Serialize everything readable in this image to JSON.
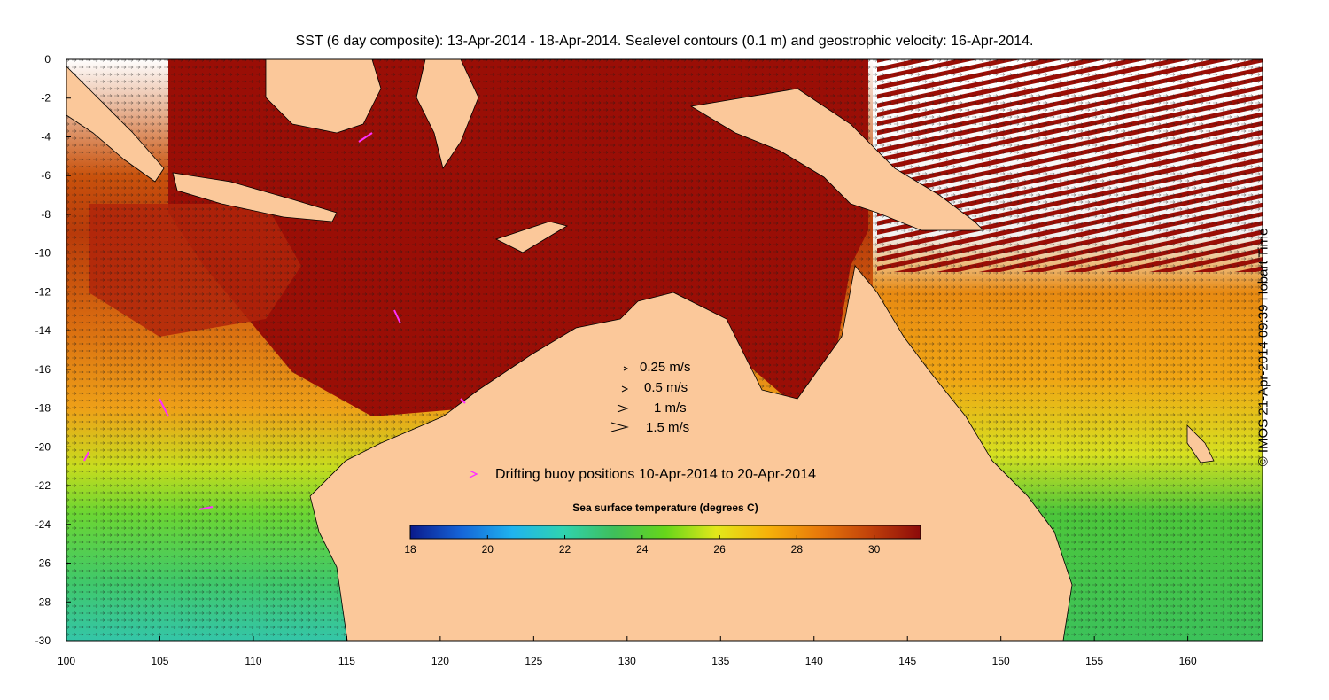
{
  "title": "SST (6 day composite): 13-Apr-2014 - 18-Apr-2014. Sealevel contours (0.1 m) and geostrophic velocity: 16-Apr-2014.",
  "side_label": "© IMOS 21-Apr-2014 09:39 Hobart Time",
  "velocity_legend": [
    "0.25 m/s",
    "0.5 m/s",
    "1 m/s",
    "1.5 m/s"
  ],
  "buoy_legend": "Drifting buoy positions 10-Apr-2014 to 20-Apr-2014",
  "colorbar": {
    "title": "Sea surface temperature (degrees C)",
    "min": 18,
    "max": 31.2,
    "ticks": [
      18,
      20,
      22,
      24,
      26,
      28,
      30
    ],
    "tick_labels": [
      "18",
      "20",
      "22",
      "24",
      "26",
      "28",
      "30"
    ],
    "colors": [
      "#0a1a8c",
      "#1565d8",
      "#1fb3ee",
      "#2fd3b0",
      "#3fbf5a",
      "#66d61a",
      "#e3e81a",
      "#f6b20a",
      "#e87a0a",
      "#c2420a",
      "#8c0a0a"
    ]
  },
  "axes": {
    "lon_min": 100,
    "lon_max": 164,
    "lat_min": -30,
    "lat_max": 0,
    "x_ticks": [
      100,
      105,
      110,
      115,
      120,
      125,
      130,
      135,
      140,
      145,
      150,
      155,
      160
    ],
    "x_tick_labels": [
      "100",
      "105",
      "110",
      "115",
      "120",
      "125",
      "130",
      "135",
      "140",
      "145",
      "150",
      "155",
      "160"
    ],
    "y_ticks": [
      0,
      -2,
      -4,
      -6,
      -8,
      -10,
      -12,
      -14,
      -16,
      -18,
      -20,
      -22,
      -24,
      -26,
      -28,
      -30
    ],
    "y_tick_labels": [
      "0",
      "-2",
      "-4",
      "-6",
      "-8",
      "-10",
      "-12",
      "-14",
      "-16",
      "-18",
      "-20",
      "-22",
      "-24",
      "-26",
      "-28",
      "-30"
    ]
  },
  "colors": {
    "land": "#fbc89a",
    "buoy": "#ff30ff",
    "ocean_warm": "#9a0e06",
    "ocean_mid": "#e07a10",
    "ocean_cool": "#5fd23a",
    "ocean_cold": "#22c7b0"
  }
}
